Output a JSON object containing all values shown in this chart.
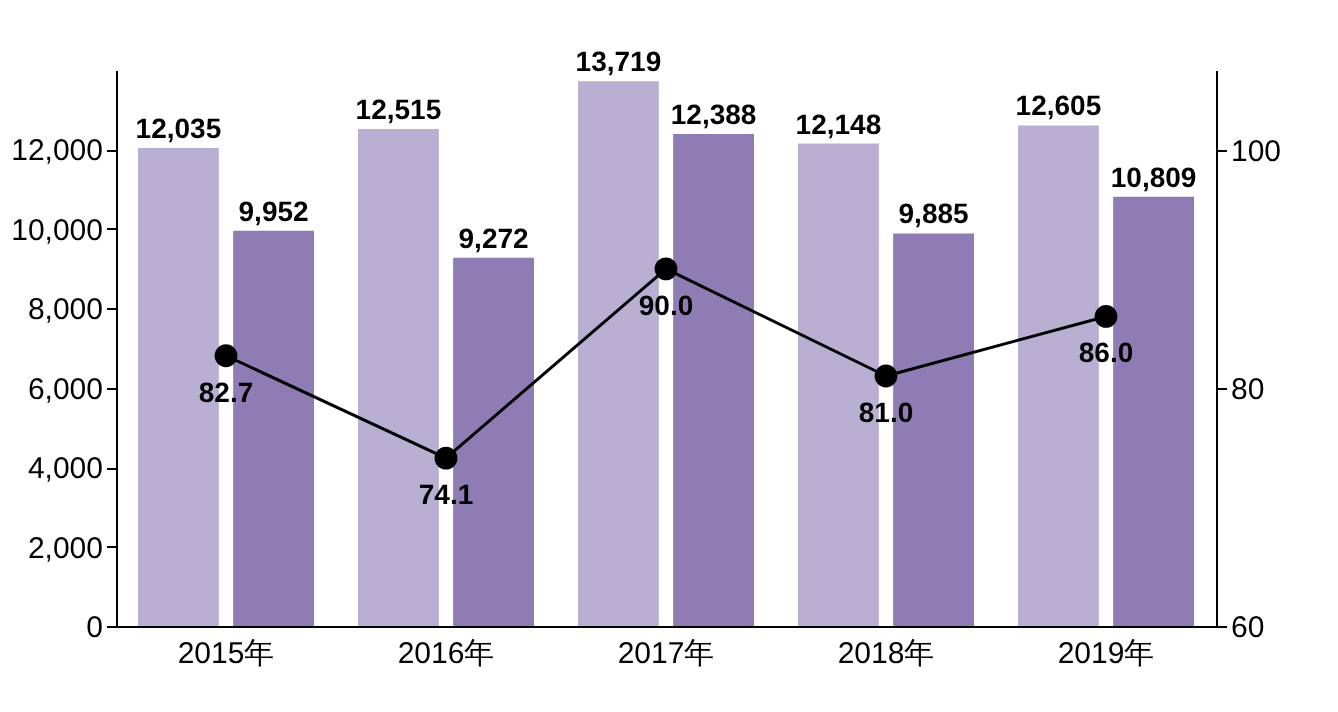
{
  "chart_data": {
    "type": "bar",
    "categories": [
      "2015年",
      "2016年",
      "2017年",
      "2018年",
      "2019年"
    ],
    "series": [
      {
        "color": "#b9afd2",
        "values": [
          12035,
          12515,
          13719,
          12148,
          12605
        ],
        "value_labels": [
          "12,035",
          "12,515",
          "13,719",
          "12,148",
          "12,605"
        ]
      },
      {
        "color": "#8f7cb5",
        "values": [
          9952,
          9272,
          12388,
          9885,
          10809
        ],
        "value_labels": [
          "9,952",
          "9,272",
          "12,388",
          "9,885",
          "10,809"
        ]
      },
      {
        "type": "line",
        "axis": "y2",
        "color": "#000000",
        "values": [
          82.7,
          74.1,
          90.0,
          81.0,
          86.0
        ],
        "value_labels": [
          "82.7",
          "74.1",
          "90.0",
          "81.0",
          "86.0"
        ],
        "marker": "circle",
        "line_style": "solid"
      }
    ],
    "ylim": [
      0,
      14000
    ],
    "yticks": [
      0,
      {
        "value": 2000,
        "label": "2,000"
      },
      {
        "value": 4000,
        "label": "4,000"
      },
      {
        "value": 6000,
        "label": "6,000"
      },
      {
        "value": 8000,
        "label": "8,000"
      },
      {
        "value": 10000,
        "label": "10,000"
      },
      {
        "value": 12000,
        "label": "12,000"
      }
    ],
    "y2lim": [
      60,
      106.7
    ],
    "y2ticks": [
      60,
      80,
      100
    ],
    "grid": false,
    "legend": false
  }
}
